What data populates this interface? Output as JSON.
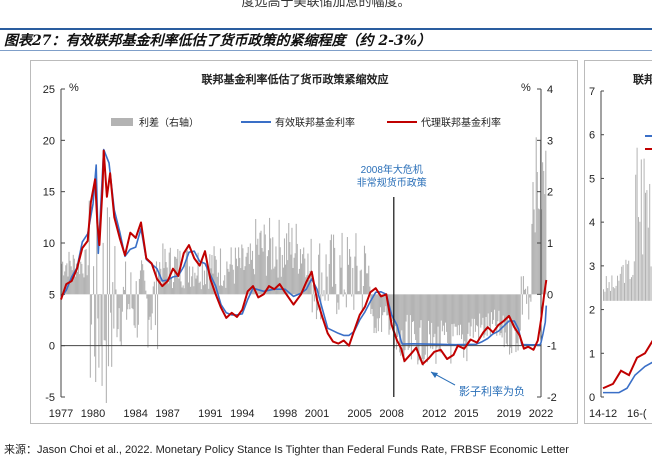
{
  "page": {
    "top_text": "度远高于美联储加息的幅度。",
    "figure_title": "图表27：有效联邦基金利率低估了货币政策的紧缩程度（约 2-3%）",
    "source": "来源：Jason Choi et al., 2022. Monetary Policy Stance Is Tighter than Federal Funds Rate, FRBSF Economic Letter"
  },
  "chart_data": [
    {
      "type": "line",
      "title": "联邦基金利率低估了货币政策紧缩效应",
      "left_unit": "%",
      "right_unit": "%",
      "ylim_left": [
        -5,
        25
      ],
      "ylim_right": [
        -2,
        4
      ],
      "yticks_left": [
        -5,
        0,
        5,
        10,
        15,
        20,
        25
      ],
      "yticks_right": [
        -2,
        -1,
        0,
        1,
        2,
        3,
        4
      ],
      "xlim": [
        1977,
        2022
      ],
      "xticks": [
        "1977",
        "1980",
        "1984",
        "1987",
        "1991",
        "1994",
        "1998",
        "2001",
        "2005",
        "2008",
        "2012",
        "2015",
        "2019",
        "2022"
      ],
      "legend": [
        "利差（右轴）",
        "有效联邦基金利率",
        "代理联邦基金利率"
      ],
      "annotations": {
        "crisis": "2008年大危机\n非常规货币政策",
        "shadow": "影子利率为负"
      },
      "colors": {
        "spread": "#b3b3b3",
        "effective": "#3a6fc7",
        "proxy": "#c00000",
        "annotation": "#2a6fb8"
      },
      "series": [
        {
          "name": "有效联邦基金利率",
          "axis": "left",
          "points": [
            [
              1977,
              4.7
            ],
            [
              1977.5,
              5.4
            ],
            [
              1978,
              6.7
            ],
            [
              1978.5,
              7.6
            ],
            [
              1979,
              10.1
            ],
            [
              1979.5,
              10.9
            ],
            [
              1980,
              13.8
            ],
            [
              1980.3,
              17.6
            ],
            [
              1980.5,
              9.0
            ],
            [
              1980.8,
              15.0
            ],
            [
              1981,
              19.1
            ],
            [
              1981.5,
              17.8
            ],
            [
              1982,
              13.2
            ],
            [
              1982.5,
              11.1
            ],
            [
              1983,
              8.7
            ],
            [
              1983.5,
              9.4
            ],
            [
              1984,
              9.6
            ],
            [
              1984.5,
              11.4
            ],
            [
              1985,
              8.4
            ],
            [
              1986,
              7.5
            ],
            [
              1986.5,
              6.3
            ],
            [
              1987,
              6.4
            ],
            [
              1987.5,
              6.7
            ],
            [
              1988,
              6.8
            ],
            [
              1988.5,
              7.7
            ],
            [
              1989,
              9.1
            ],
            [
              1989.5,
              9.2
            ],
            [
              1990,
              8.2
            ],
            [
              1990.5,
              8.0
            ],
            [
              1991,
              6.9
            ],
            [
              1991.5,
              5.8
            ],
            [
              1992,
              4.0
            ],
            [
              1992.5,
              3.2
            ],
            [
              1993,
              3.0
            ],
            [
              1993.5,
              3.0
            ],
            [
              1994,
              3.1
            ],
            [
              1994.5,
              4.5
            ],
            [
              1995,
              5.6
            ],
            [
              1996,
              5.3
            ],
            [
              1997,
              5.5
            ],
            [
              1998,
              5.5
            ],
            [
              1998.8,
              4.8
            ],
            [
              1999.5,
              5.1
            ],
            [
              2000,
              5.5
            ],
            [
              2000.5,
              6.5
            ],
            [
              2001,
              5.5
            ],
            [
              2001.5,
              3.6
            ],
            [
              2002,
              1.7
            ],
            [
              2003,
              1.2
            ],
            [
              2003.5,
              1.0
            ],
            [
              2004,
              1.0
            ],
            [
              2004.5,
              1.4
            ],
            [
              2005,
              2.5
            ],
            [
              2005.5,
              3.3
            ],
            [
              2006,
              4.3
            ],
            [
              2006.5,
              5.2
            ],
            [
              2007,
              5.25
            ],
            [
              2007.5,
              5.0
            ],
            [
              2008,
              3.0
            ],
            [
              2008.5,
              2.0
            ],
            [
              2008.9,
              0.4
            ],
            [
              2009,
              0.15
            ],
            [
              2010,
              0.18
            ],
            [
              2012,
              0.14
            ],
            [
              2014,
              0.09
            ],
            [
              2015.9,
              0.13
            ],
            [
              2016.5,
              0.4
            ],
            [
              2017,
              0.7
            ],
            [
              2017.5,
              1.15
            ],
            [
              2018,
              1.4
            ],
            [
              2018.5,
              1.9
            ],
            [
              2019,
              2.4
            ],
            [
              2019.5,
              2.4
            ],
            [
              2019.9,
              1.6
            ],
            [
              2020.2,
              0.1
            ],
            [
              2021,
              0.08
            ],
            [
              2021.9,
              0.08
            ],
            [
              2022,
              0.3
            ],
            [
              2022.2,
              1.2
            ],
            [
              2022.4,
              2.3
            ],
            [
              2022.5,
              3.9
            ]
          ]
        },
        {
          "name": "代理联邦基金利率",
          "axis": "left",
          "points": [
            [
              1977,
              4.5
            ],
            [
              1977.5,
              6.0
            ],
            [
              1978,
              6.3
            ],
            [
              1978.5,
              7.5
            ],
            [
              1979,
              9.5
            ],
            [
              1979.5,
              10.2
            ],
            [
              1979.8,
              14.0
            ],
            [
              1980.2,
              16.2
            ],
            [
              1980.4,
              12.0
            ],
            [
              1980.6,
              9.8
            ],
            [
              1980.9,
              15.5
            ],
            [
              1981,
              19.0
            ],
            [
              1981.3,
              14.5
            ],
            [
              1981.6,
              16.8
            ],
            [
              1982,
              12.5
            ],
            [
              1982.5,
              10.5
            ],
            [
              1983,
              8.8
            ],
            [
              1983.5,
              11.0
            ],
            [
              1984,
              10.5
            ],
            [
              1984.5,
              12.0
            ],
            [
              1985,
              8.5
            ],
            [
              1985.5,
              8.0
            ],
            [
              1986,
              6.5
            ],
            [
              1986.5,
              5.8
            ],
            [
              1987,
              6.3
            ],
            [
              1987.5,
              7.5
            ],
            [
              1988,
              6.8
            ],
            [
              1988.5,
              9.0
            ],
            [
              1989,
              9.8
            ],
            [
              1989.5,
              8.5
            ],
            [
              1990,
              7.8
            ],
            [
              1990.5,
              9.2
            ],
            [
              1991,
              6.5
            ],
            [
              1991.5,
              5.0
            ],
            [
              1992,
              3.7
            ],
            [
              1992.5,
              2.7
            ],
            [
              1993,
              3.2
            ],
            [
              1993.5,
              2.8
            ],
            [
              1994,
              3.5
            ],
            [
              1994.5,
              5.3
            ],
            [
              1995,
              5.8
            ],
            [
              1995.5,
              4.7
            ],
            [
              1996,
              5.0
            ],
            [
              1996.5,
              5.8
            ],
            [
              1997,
              5.5
            ],
            [
              1997.5,
              6.0
            ],
            [
              1998,
              5.2
            ],
            [
              1998.8,
              4.0
            ],
            [
              1999.5,
              5.0
            ],
            [
              2000,
              6.2
            ],
            [
              2000.5,
              7.2
            ],
            [
              2001,
              4.5
            ],
            [
              2001.5,
              2.8
            ],
            [
              2002,
              1.2
            ],
            [
              2002.5,
              0.4
            ],
            [
              2003,
              0.2
            ],
            [
              2003.5,
              0.5
            ],
            [
              2004,
              0.0
            ],
            [
              2004.5,
              1.5
            ],
            [
              2005,
              3.0
            ],
            [
              2005.5,
              3.8
            ],
            [
              2006,
              5.2
            ],
            [
              2006.5,
              5.6
            ],
            [
              2007,
              4.8
            ],
            [
              2007.5,
              5.0
            ],
            [
              2008,
              2.0
            ],
            [
              2008.5,
              0.5
            ],
            [
              2008.9,
              -0.3
            ],
            [
              2009.2,
              -1.5
            ],
            [
              2009.8,
              -0.8
            ],
            [
              2010.3,
              -0.2
            ],
            [
              2010.9,
              -1.8
            ],
            [
              2011.5,
              -1.2
            ],
            [
              2012,
              -0.6
            ],
            [
              2012.6,
              -0.4
            ],
            [
              2013.2,
              -1.3
            ],
            [
              2013.8,
              -0.9
            ],
            [
              2014.2,
              0.0
            ],
            [
              2014.8,
              -0.3
            ],
            [
              2015.4,
              0.6
            ],
            [
              2016,
              0.3
            ],
            [
              2016.6,
              1.3
            ],
            [
              2017,
              1.8
            ],
            [
              2017.5,
              1.3
            ],
            [
              2018,
              2.0
            ],
            [
              2018.5,
              2.4
            ],
            [
              2019,
              2.9
            ],
            [
              2019.5,
              1.8
            ],
            [
              2020,
              1.0
            ],
            [
              2020.4,
              -0.3
            ],
            [
              2020.8,
              -0.1
            ],
            [
              2021.3,
              -0.4
            ],
            [
              2021.7,
              0.5
            ],
            [
              2022,
              2.5
            ],
            [
              2022.3,
              5.0
            ],
            [
              2022.5,
              6.4
            ]
          ]
        }
      ]
    },
    {
      "type": "line",
      "title": "联邦",
      "yticks": [
        0,
        1,
        2,
        3,
        4,
        5,
        6,
        7
      ],
      "ylim": [
        0,
        7
      ],
      "xticks": [
        "14-12",
        "16-("
      ]
    }
  ]
}
